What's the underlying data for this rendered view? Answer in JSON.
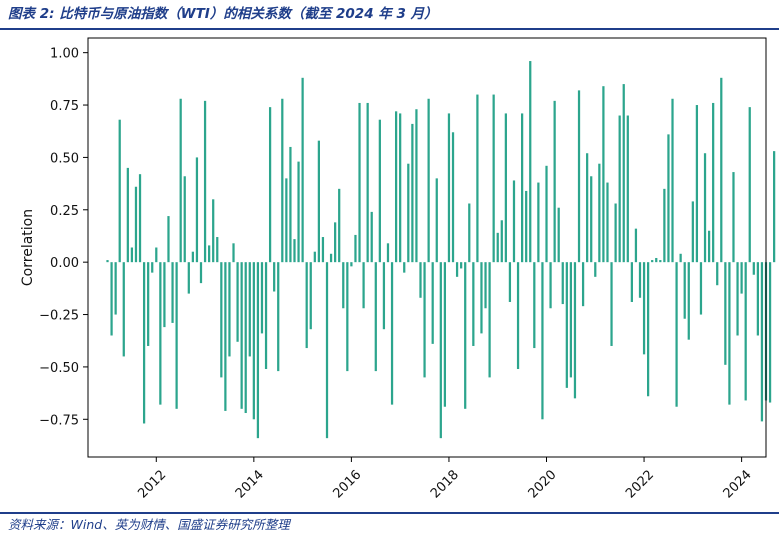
{
  "header": {
    "title": "图表 2:  比特币与原油指数（WTI）的相关系数（截至 2024 年 3 月）"
  },
  "footer": {
    "source": "资料来源：Wind、英为财情、国盛证券研究所整理"
  },
  "colors": {
    "accent": "#1f3e8a",
    "bar": "#2ca58d"
  },
  "chart_data": {
    "type": "bar",
    "title": "",
    "ylabel": "Correlation",
    "xlabel": "",
    "ylim": [
      -0.93,
      1.07
    ],
    "yticks": [
      -0.75,
      -0.5,
      -0.25,
      0.0,
      0.25,
      0.5,
      0.75,
      1.0
    ],
    "ytick_labels": [
      "−0.75",
      "−0.50",
      "−0.25",
      "0.00",
      "0.25",
      "0.50",
      "0.75",
      "1.00"
    ],
    "xlim": [
      2010.6,
      2024.5
    ],
    "xticks": [
      2012,
      2014,
      2016,
      2018,
      2020,
      2022,
      2024
    ],
    "xtick_labels": [
      "2012",
      "2014",
      "2016",
      "2018",
      "2020",
      "2022",
      "2024"
    ],
    "grid": false,
    "legend": "none",
    "series": [
      {
        "x_start": 2011.0,
        "x_step_months": 1,
        "values": [
          0.01,
          -0.35,
          -0.25,
          0.68,
          -0.45,
          0.45,
          0.07,
          0.36,
          0.42,
          -0.77,
          -0.4,
          -0.05,
          0.07,
          -0.68,
          -0.31,
          0.22,
          -0.29,
          -0.7,
          0.78,
          0.41,
          -0.15,
          0.05,
          0.5,
          -0.1,
          0.77,
          0.08,
          0.3,
          0.12,
          -0.55,
          -0.71,
          -0.45,
          0.09,
          -0.38,
          -0.7,
          -0.72,
          -0.45,
          -0.75,
          -0.84,
          -0.34,
          -0.51,
          0.74,
          -0.14,
          -0.52,
          0.78,
          0.4,
          0.55,
          0.11,
          0.48,
          0.88,
          -0.41,
          -0.32,
          0.05,
          0.58,
          0.12,
          -0.84,
          0.04,
          0.19,
          0.35,
          -0.22,
          -0.52,
          -0.02,
          0.13,
          0.76,
          -0.22,
          0.76,
          0.24,
          -0.52,
          0.68,
          -0.32,
          0.09,
          -0.68,
          0.72,
          0.71,
          -0.05,
          0.47,
          0.66,
          0.73,
          -0.17,
          -0.55,
          0.78,
          -0.39,
          0.4,
          -0.84,
          -0.69,
          0.71,
          0.62,
          -0.07,
          -0.03,
          -0.7,
          0.28,
          -0.4,
          0.8,
          -0.34,
          -0.22,
          -0.55,
          0.8,
          0.14,
          0.2,
          0.71,
          -0.19,
          0.39,
          -0.51,
          0.71,
          0.34,
          0.96,
          -0.41,
          0.38,
          -0.75,
          0.46,
          -0.22,
          0.77,
          0.26,
          -0.2,
          -0.6,
          -0.55,
          -0.65,
          0.82,
          -0.21,
          0.52,
          0.41,
          -0.07,
          0.47,
          0.84,
          0.38,
          -0.4,
          0.28,
          0.7,
          0.85,
          0.7,
          -0.19,
          0.16,
          -0.17,
          -0.44,
          -0.64,
          0.01,
          0.02,
          0.01,
          0.35,
          0.61,
          0.78,
          -0.69,
          0.04,
          -0.27,
          -0.37,
          0.29,
          0.75,
          -0.25,
          0.52,
          0.15,
          0.76,
          -0.11,
          0.88,
          -0.49,
          -0.68,
          0.43,
          -0.35,
          -0.15,
          -0.66,
          0.74,
          -0.06,
          -0.35,
          -0.76,
          -0.66,
          -0.67,
          0.53
        ]
      }
    ]
  }
}
